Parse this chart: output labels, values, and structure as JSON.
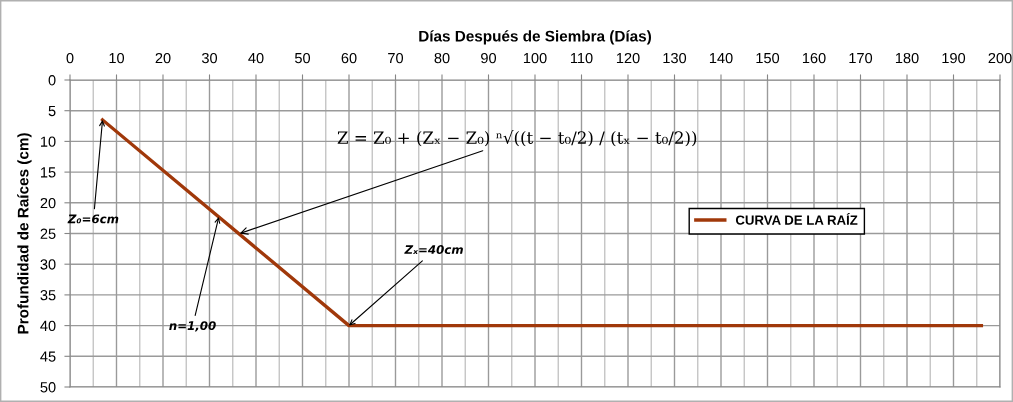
{
  "chart_data": {
    "type": "line",
    "xlabel": "Días Después de Siembra (Días)",
    "ylabel": "Profundidad de Raíces (cm)",
    "x": [
      7,
      60,
      196
    ],
    "series": [
      {
        "name": "CURVA DE LA RAÍZ",
        "color": "#a0380a",
        "values": [
          6.5,
          40,
          40
        ]
      }
    ],
    "xlim": [
      0,
      200
    ],
    "xticks": [
      0,
      {
        "value": 5,
        "label": null
      },
      10,
      {
        "value": 15,
        "label": null
      },
      20,
      {
        "value": 25,
        "label": null
      },
      30,
      {
        "value": 35,
        "label": null
      },
      40,
      {
        "value": 45,
        "label": null
      },
      50,
      {
        "value": 55,
        "label": null
      },
      60,
      {
        "value": 65,
        "label": null
      },
      70,
      {
        "value": 75,
        "label": null
      },
      80,
      {
        "value": 85,
        "label": null
      },
      90,
      {
        "value": 95,
        "label": null
      },
      100,
      {
        "value": 105,
        "label": null
      },
      110,
      {
        "value": 115,
        "label": null
      },
      120,
      {
        "value": 125,
        "label": null
      },
      130,
      {
        "value": 135,
        "label": null
      },
      140,
      {
        "value": 145,
        "label": null
      },
      150,
      {
        "value": 155,
        "label": null
      },
      160,
      {
        "value": 165,
        "label": null
      },
      170,
      {
        "value": 175,
        "label": null
      },
      180,
      {
        "value": 185,
        "label": null
      },
      190,
      {
        "value": 195,
        "label": null
      },
      200
    ],
    "ylim": [
      50,
      0
    ],
    "yticks": [
      0,
      5,
      10,
      15,
      20,
      25,
      30,
      35,
      40,
      45,
      50
    ],
    "annotations": [
      {
        "text": "Z₀=6cm",
        "x": 7,
        "y": 6.5
      },
      {
        "text": "n=1,00",
        "x": 32,
        "y": 22.3
      },
      {
        "text": "Z = Z₀ + (Zₓ − Z₀) ⁿ√((t − t₀/2) / (tₓ − t₀/2))",
        "x": 36.5,
        "y": 25
      },
      {
        "text": "Zₓ=40cm",
        "x": 60,
        "y": 40
      }
    ],
    "grid": true,
    "legend": "right"
  }
}
